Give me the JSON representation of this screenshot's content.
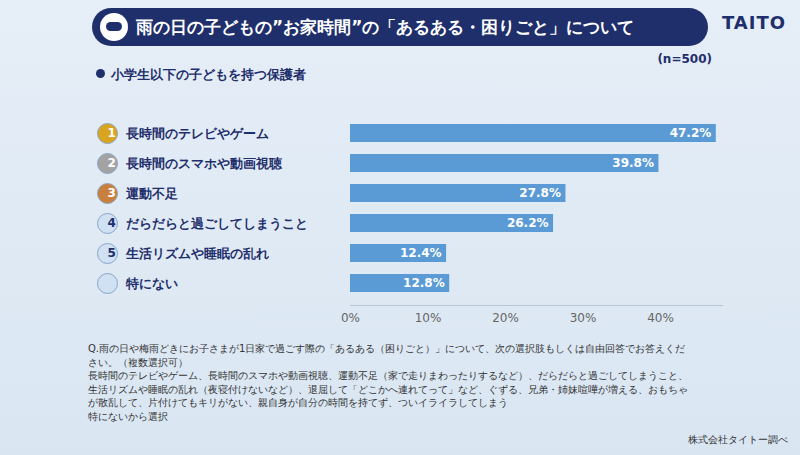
{
  "chart_data": {
    "type": "bar",
    "orientation": "horizontal",
    "title": "雨の日の子どもの”お家時間”の「あるある・困りごと」について",
    "subtitle": "小学生以下の子どもを持つ保護者",
    "annotations": [
      "(n=500)"
    ],
    "logo": "TAITO",
    "categories": [
      "長時間のテレビやゲーム",
      "長時間のスマホや動画視聴",
      "運動不足",
      "だらだらと過ごしてしまうこと",
      "生活リズムや睡眠の乱れ",
      "特にない"
    ],
    "ranks": [
      1,
      2,
      3,
      4,
      5,
      null
    ],
    "values": [
      47.2,
      39.8,
      27.8,
      26.2,
      12.4,
      12.8
    ],
    "value_labels": [
      "47.2%",
      "39.8%",
      "27.8%",
      "26.2%",
      "12.4%",
      "12.8%"
    ],
    "data_labels": true,
    "color": "#5b9bd5",
    "xlim": [
      0,
      48
    ],
    "xticks": [
      {
        "value": 0,
        "label": "0%"
      },
      {
        "value": 10,
        "label": "10%"
      },
      {
        "value": 20,
        "label": "20%"
      },
      {
        "value": 30,
        "label": "30%"
      },
      {
        "value": 40,
        "label": "40%"
      }
    ],
    "footnote": [
      "Q.雨の日や梅雨どきにお子さまが1日家で過ごす際の「あるある（困りごと）」について、次の選択肢もしくは自由回答でお答えください。（複数選択可）",
      "長時間のテレビやゲーム、長時間のスマホや動画視聴、運動不足（家で走りまわったりするなど）、だらだらと過ごしてしまうこと、生活リズムや睡眠の乱れ（夜寝付けないなど）、退屈して「どこかへ連れてって」など、ぐずる、兄弟・姉妹喧嘩が増える、おもちゃが散乱して、片付けてもキリがない、親自身が自分の時間を持てず、ついイライラしてしまう",
      "特にないから選択"
    ],
    "source": "株式会社タイトー調べ"
  }
}
